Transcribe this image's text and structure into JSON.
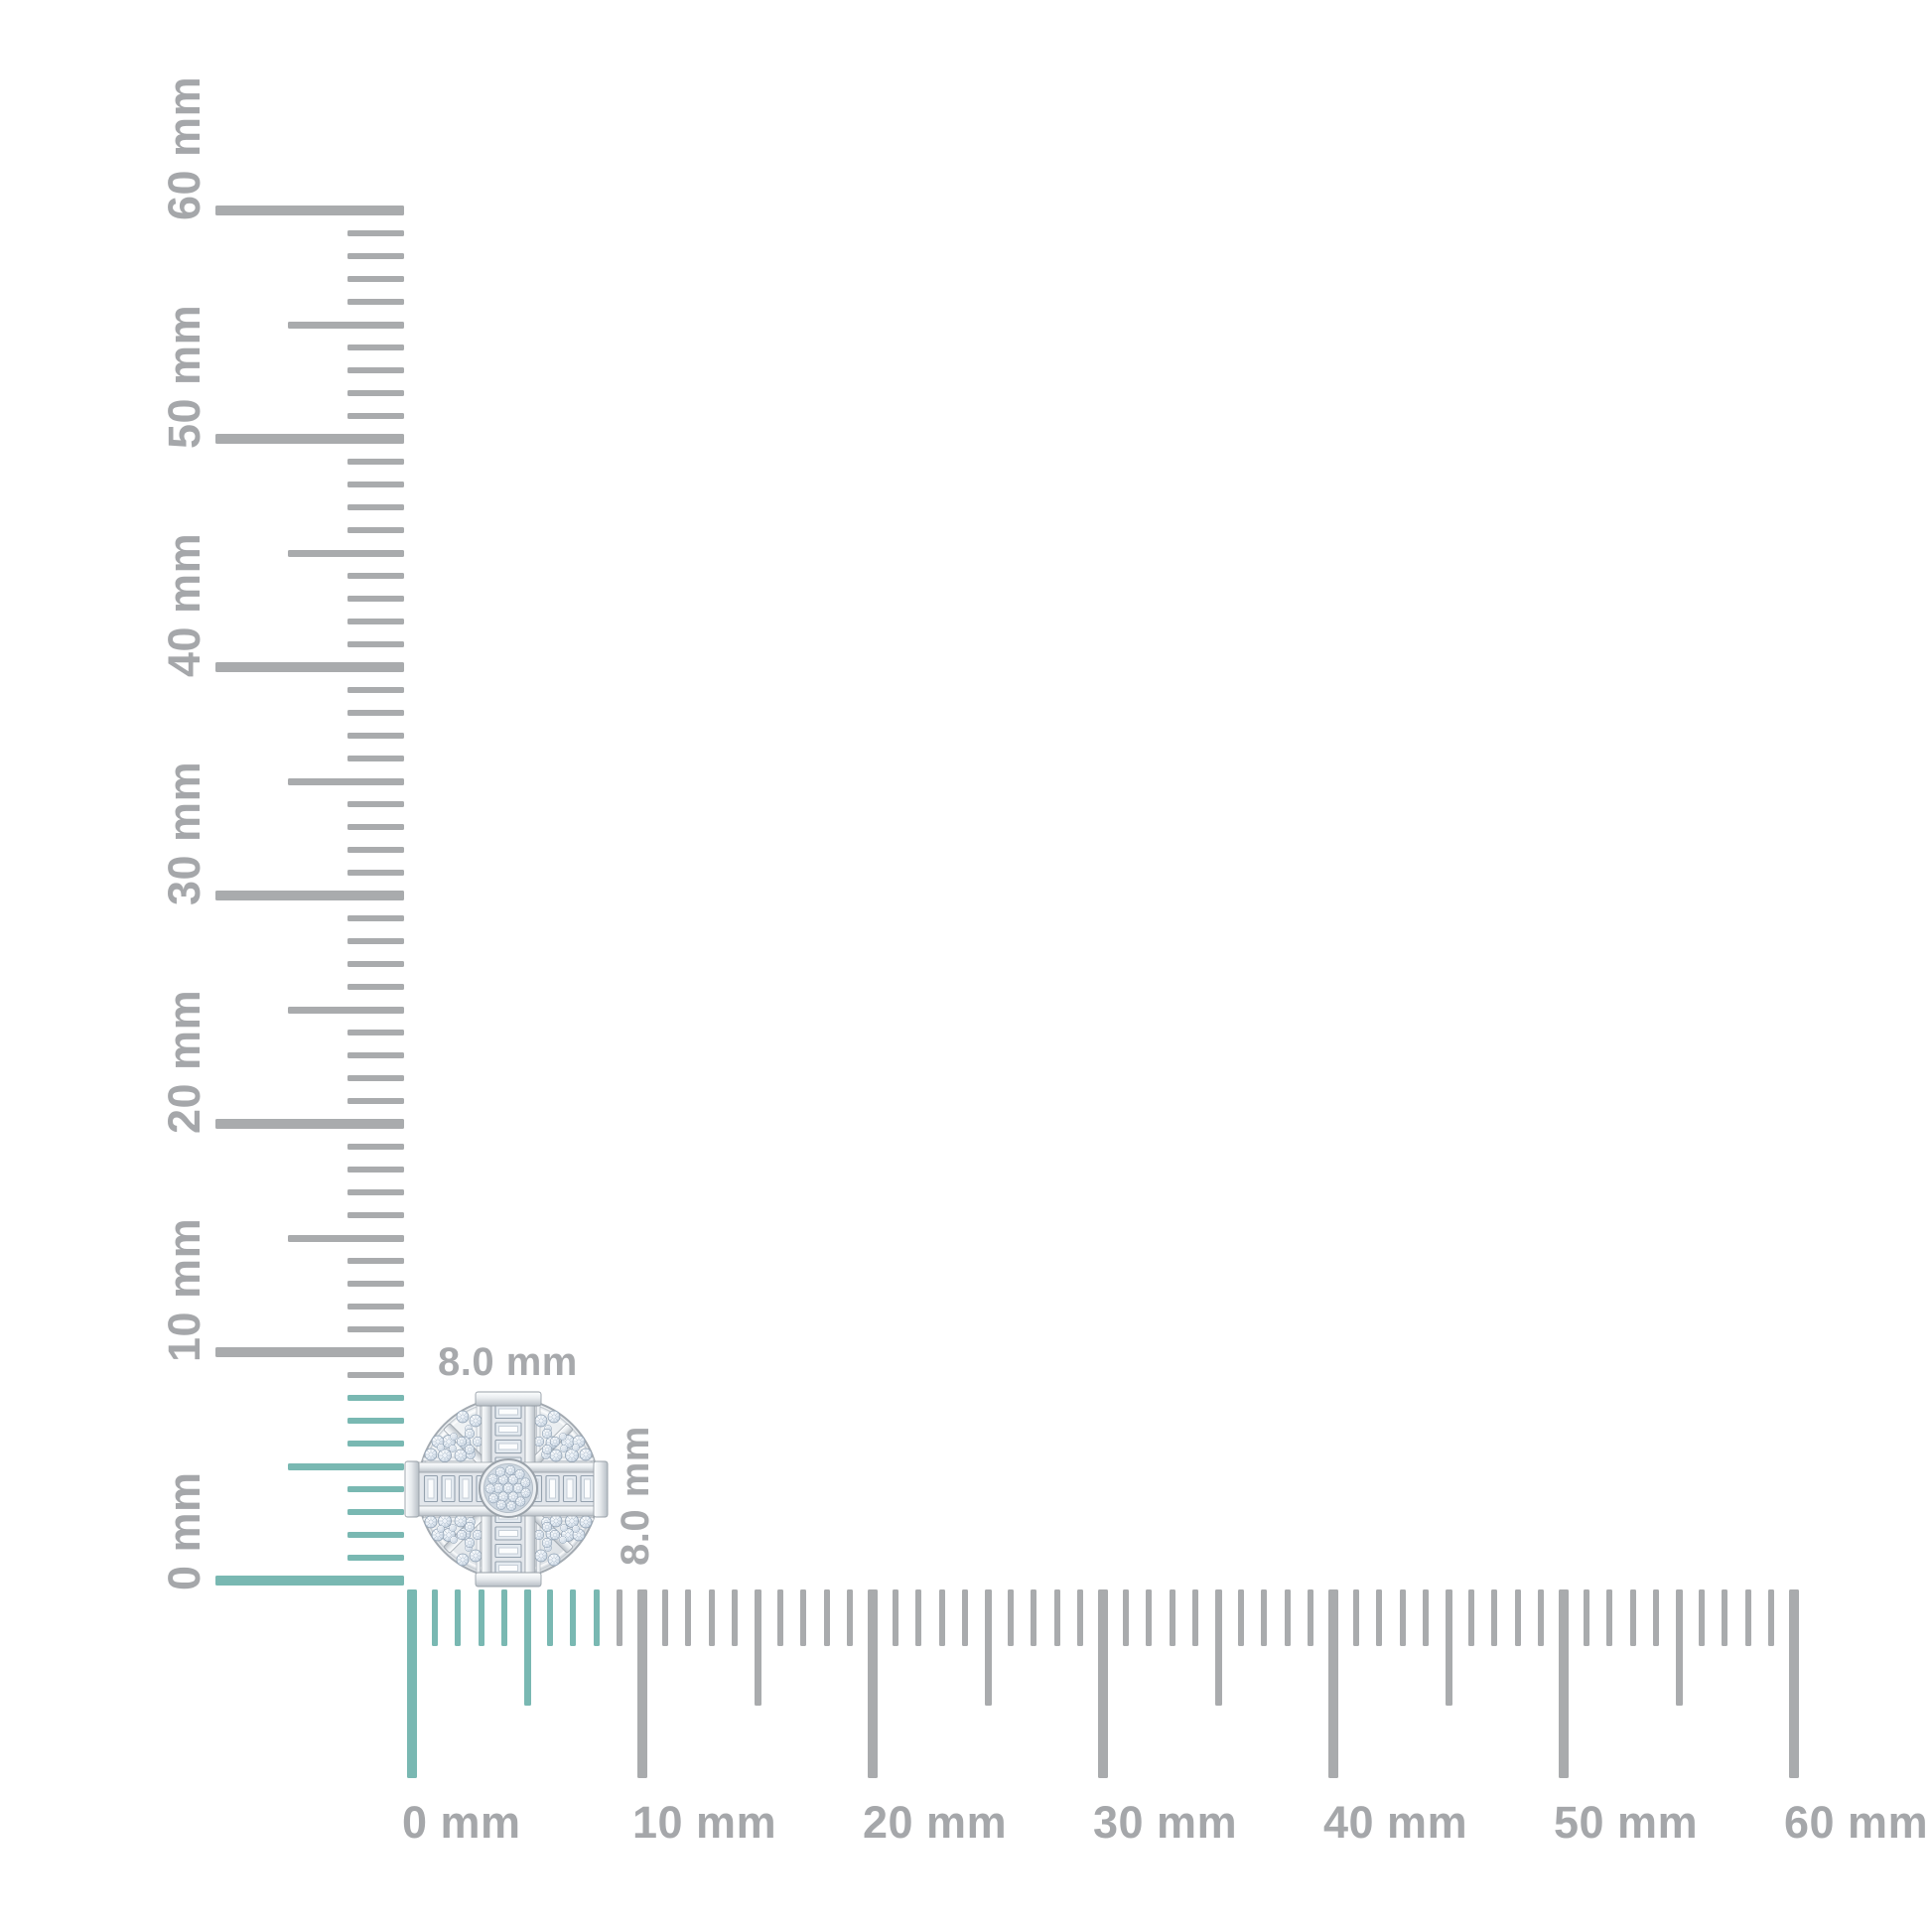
{
  "page": {
    "background": "#ffffff",
    "description": "Jewelry product dimension diagram: round diamond cluster cross stud shown against millimeter rulers"
  },
  "product": {
    "kind": "diamond-cluster-cross-stud",
    "width_label": "8.0 mm",
    "height_label": "8.0 mm"
  },
  "rulers": {
    "unit": "mm",
    "horizontal": {
      "min_mm": 0,
      "max_mm": 60,
      "minor_step_mm": 1,
      "medium_step_mm": 5,
      "major_step_mm": 10,
      "highlight_to_mm": 8,
      "labels": [
        "0 mm",
        "10 mm",
        "20 mm",
        "30 mm",
        "40 mm",
        "50 mm",
        "60 mm"
      ]
    },
    "vertical": {
      "min_mm": 0,
      "max_mm": 60,
      "minor_step_mm": 1,
      "medium_step_mm": 5,
      "major_step_mm": 10,
      "highlight_to_mm": 8,
      "labels": [
        "0 mm",
        "10 mm",
        "20 mm",
        "30 mm",
        "40 mm",
        "50 mm",
        "60 mm"
      ]
    }
  },
  "colors": {
    "tick_gray": "#a9abad",
    "tick_highlight": "#79b8b2",
    "label_gray": "#a5a7aa",
    "dim_label_gray": "#a7a9ac"
  }
}
